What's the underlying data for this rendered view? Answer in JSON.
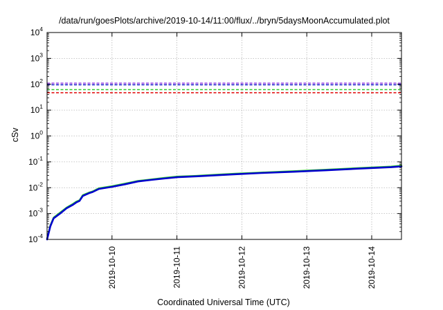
{
  "chart_data": {
    "type": "line",
    "title": "/data/run/goesPlots/archive/2019-10-14/11:00/flux/../bryn/5daysMoonAccumulated.plot",
    "xlabel": "Coordinated Universal Time (UTC)",
    "ylabel": "cSv",
    "yscale": "log",
    "ylim": [
      0.0001,
      10000
    ],
    "xlim": [
      "2019-10-09 00:00",
      "2019-10-14 11:00"
    ],
    "grid": true,
    "xticks": [
      "2019-10-10",
      "2019-10-11",
      "2019-10-12",
      "2019-10-13",
      "2019-10-14"
    ],
    "yticks": [
      {
        "base": "10",
        "exp": "-4",
        "value": 0.0001
      },
      {
        "base": "10",
        "exp": "-3",
        "value": 0.001
      },
      {
        "base": "10",
        "exp": "-2",
        "value": 0.01
      },
      {
        "base": "10",
        "exp": "-1",
        "value": 0.1
      },
      {
        "base": "10",
        "exp": "0",
        "value": 1
      },
      {
        "base": "10",
        "exp": "1",
        "value": 10
      },
      {
        "base": "10",
        "exp": "2",
        "value": 100
      },
      {
        "base": "10",
        "exp": "3",
        "value": 1000
      },
      {
        "base": "10",
        "exp": "4",
        "value": 10000
      }
    ],
    "reference_lines": [
      {
        "color": "#8a2be2",
        "value": 110
      },
      {
        "color": "#0000cd",
        "value": 95
      },
      {
        "color": "#2ecc2e",
        "value": 62
      },
      {
        "color": "#e00000",
        "value": 47
      }
    ],
    "series": [
      {
        "color": "#2ecc2e",
        "x": [
          "2019-10-09 00:00",
          "2019-10-09 01:12",
          "2019-10-09 02:24",
          "2019-10-09 04:48",
          "2019-10-09 07:12",
          "2019-10-09 09:36",
          "2019-10-09 10:48",
          "2019-10-09 12:00",
          "2019-10-09 13:12",
          "2019-10-09 15:36",
          "2019-10-09 16:48",
          "2019-10-09 19:12",
          "2019-10-10 00:00",
          "2019-10-10 04:48",
          "2019-10-10 09:36",
          "2019-10-10 14:24",
          "2019-10-10 19:12",
          "2019-10-11 00:00",
          "2019-10-11 07:12",
          "2019-10-11 14:24",
          "2019-10-11 21:36",
          "2019-10-12 07:12",
          "2019-10-12 19:12",
          "2019-10-13 07:12",
          "2019-10-13 19:12",
          "2019-10-14 07:12",
          "2019-10-14 11:00"
        ],
        "y": [
          0.00011,
          0.00035,
          0.0007,
          0.0011,
          0.0017,
          0.0024,
          0.0029,
          0.0033,
          0.0052,
          0.0066,
          0.0072,
          0.0096,
          0.0115,
          0.0145,
          0.0185,
          0.021,
          0.024,
          0.027,
          0.029,
          0.032,
          0.035,
          0.039,
          0.044,
          0.05,
          0.058,
          0.066,
          0.072
        ]
      },
      {
        "color": "#0000cd",
        "x": [
          "2019-10-09 00:00",
          "2019-10-09 01:12",
          "2019-10-09 02:24",
          "2019-10-09 04:48",
          "2019-10-09 07:12",
          "2019-10-09 09:36",
          "2019-10-09 10:48",
          "2019-10-09 12:00",
          "2019-10-09 13:12",
          "2019-10-09 15:36",
          "2019-10-09 16:48",
          "2019-10-09 19:12",
          "2019-10-10 00:00",
          "2019-10-10 04:48",
          "2019-10-10 09:36",
          "2019-10-10 14:24",
          "2019-10-10 19:12",
          "2019-10-11 00:00",
          "2019-10-11 07:12",
          "2019-10-11 14:24",
          "2019-10-11 21:36",
          "2019-10-12 07:12",
          "2019-10-12 19:12",
          "2019-10-13 07:12",
          "2019-10-13 19:12",
          "2019-10-14 07:12",
          "2019-10-14 11:00"
        ],
        "y": [
          0.0001,
          0.00032,
          0.00065,
          0.001,
          0.0016,
          0.0022,
          0.0027,
          0.0031,
          0.0048,
          0.0062,
          0.0068,
          0.009,
          0.0108,
          0.0136,
          0.0175,
          0.02,
          0.0226,
          0.0255,
          0.0275,
          0.0302,
          0.0332,
          0.037,
          0.0415,
          0.047,
          0.0545,
          0.062,
          0.067
        ]
      }
    ]
  }
}
